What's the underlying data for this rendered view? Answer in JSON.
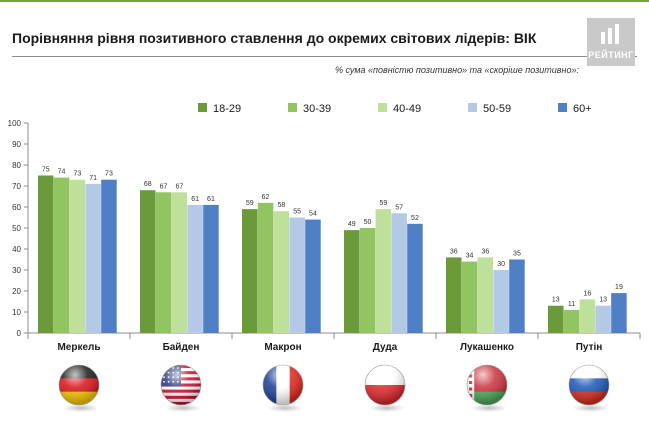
{
  "header": {
    "title": "Порівняння рівня позитивного ставлення до окремих світових лідерів: ВІК",
    "subtitle": "% сума «повністю позитивно» та «скоріше позитивно»",
    "logo_text": "РЕЙТИНГ",
    "logo_icon": "rating-logo-icon"
  },
  "colors": {
    "accent_line": "#7aa53c",
    "series": [
      "#6b9a3a",
      "#93c462",
      "#bfe09a",
      "#b4c9e6",
      "#4f7fc5"
    ]
  },
  "chart_data": {
    "type": "bar",
    "title": "Порівняння рівня позитивного ставлення до окремих світових лідерів: ВІК",
    "subtitle": "% сума «повністю позитивно» та «скоріше позитивно»",
    "categories": [
      "Меркель",
      "Байден",
      "Макрон",
      "Дуда",
      "Лукашенко",
      "Путін"
    ],
    "flags": [
      "germany-flag-icon",
      "usa-flag-icon",
      "france-flag-icon",
      "poland-flag-icon",
      "belarus-flag-icon",
      "russia-flag-icon"
    ],
    "series": [
      {
        "name": "18-29",
        "values": [
          75,
          68,
          59,
          49,
          36,
          13
        ]
      },
      {
        "name": "30-39",
        "values": [
          74,
          67,
          62,
          50,
          34,
          11
        ]
      },
      {
        "name": "40-49",
        "values": [
          73,
          67,
          58,
          59,
          36,
          16
        ]
      },
      {
        "name": "50-59",
        "values": [
          71,
          61,
          55,
          57,
          30,
          13
        ]
      },
      {
        "name": "60+",
        "values": [
          73,
          61,
          54,
          52,
          35,
          19
        ]
      }
    ],
    "xlabel": "",
    "ylabel": "",
    "ylim": [
      0,
      100
    ],
    "yticks": [
      0,
      10,
      20,
      30,
      40,
      50,
      60,
      70,
      80,
      90,
      100
    ],
    "grid": false,
    "legend_position": "top-right",
    "data_labels": true
  }
}
